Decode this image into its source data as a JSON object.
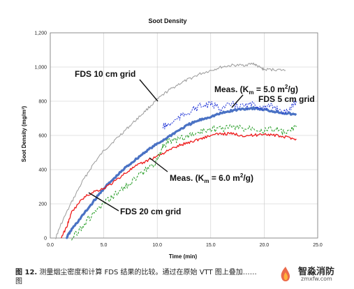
{
  "chart_data": {
    "type": "line",
    "title": "Soot Density",
    "xlabel": "Time (min)",
    "ylabel": "Soot Density (mg/m³)",
    "xlim": [
      0,
      25
    ],
    "ylim": [
      0,
      1200
    ],
    "xticks": [
      "0.0",
      "5.0",
      "10.0",
      "15.0",
      "20.0",
      "25.0"
    ],
    "yticks": [
      "0",
      "200",
      "400",
      "600",
      "800",
      "1,000",
      "1,200"
    ],
    "grid": true,
    "series": [
      {
        "name": "FDS 10 cm grid",
        "color": "#9a9a9a",
        "x": [
          0.5,
          1.0,
          2.0,
          3.0,
          4.0,
          5.0,
          6.0,
          7.0,
          8.0,
          9.0,
          10.0,
          11.0,
          12.0,
          13.0,
          14.0,
          15.0,
          16.0,
          17.0,
          18.0,
          19.0,
          19.5,
          20.0,
          21.0,
          22.0
        ],
        "y": [
          0,
          80,
          210,
          330,
          430,
          510,
          570,
          630,
          690,
          750,
          810,
          860,
          900,
          930,
          960,
          980,
          1000,
          1010,
          1010,
          1020,
          1000,
          985,
          985,
          980
        ]
      },
      {
        "name": "FDS 5 cm grid",
        "color": "#4a72c4",
        "x": [
          1.5,
          2.0,
          3.0,
          4.0,
          5.0,
          6.0,
          7.0,
          8.0,
          9.0,
          10.0,
          11.0,
          12.0,
          13.0,
          14.0,
          15.0,
          16.0,
          17.0,
          18.0,
          19.0,
          20.0,
          21.0,
          22.0,
          23.0
        ],
        "y": [
          0,
          50,
          130,
          210,
          290,
          350,
          410,
          460,
          510,
          550,
          590,
          630,
          665,
          690,
          710,
          730,
          745,
          755,
          760,
          750,
          740,
          730,
          720
        ]
      },
      {
        "name": "FDS 20 cm grid",
        "color": "#ee1c1c",
        "x": [
          1.0,
          1.5,
          2.0,
          3.0,
          4.0,
          5.0,
          6.0,
          7.0,
          8.0,
          9.0,
          10.0,
          11.0,
          12.0,
          13.0,
          14.0,
          15.0,
          16.0,
          17.0,
          18.0,
          19.0,
          20.0,
          21.0,
          22.0,
          23.0
        ],
        "y": [
          0,
          60,
          150,
          230,
          270,
          290,
          330,
          380,
          420,
          450,
          480,
          510,
          540,
          560,
          580,
          600,
          610,
          610,
          600,
          600,
          610,
          600,
          590,
          580
        ]
      },
      {
        "name": "Meas. (Km = 5.0 m²/g)",
        "color": "#1a2fd6",
        "x": [
          10.5,
          11.0,
          12.0,
          13.0,
          14.0,
          15.0,
          16.0,
          17.0,
          18.0,
          19.0,
          20.0,
          21.0,
          22.0,
          23.0
        ],
        "y": [
          650,
          660,
          700,
          740,
          770,
          780,
          760,
          780,
          770,
          780,
          760,
          770,
          730,
          800
        ]
      },
      {
        "name": "Meas. (Km = 6.0 m²/g)",
        "color": "#1f9a1f",
        "x": [
          2.0,
          3.0,
          4.0,
          5.0,
          6.0,
          7.0,
          8.0,
          9.0,
          10.0,
          10.5,
          11.0,
          12.0,
          13.0,
          14.0,
          15.0,
          16.0,
          17.0,
          18.0,
          19.0,
          20.0,
          21.0,
          22.0,
          23.0
        ],
        "y": [
          0,
          70,
          140,
          200,
          250,
          300,
          350,
          400,
          450,
          540,
          560,
          580,
          600,
          620,
          640,
          640,
          650,
          640,
          650,
          630,
          640,
          610,
          650
        ]
      }
    ],
    "annotations": {
      "fds10": "FDS 10 cm grid",
      "fds5": "FDS 5 cm grid",
      "fds20": "FDS 20 cm grid",
      "meas5_prefix": "Meas. (K",
      "meas5_sub": "m",
      "meas5_suffix": " = 5.0 m",
      "meas5_sup": "2",
      "meas5_end": "/g)",
      "meas6_prefix": "Meas. (K",
      "meas6_sub": "m",
      "meas6_suffix": " = 6.0 m",
      "meas6_sup": "2",
      "meas6_end": "/g)"
    }
  },
  "caption": {
    "prefix": "图 12.",
    "text": " 测量烟尘密度和计算 FDS 结果的比较。通过在原始 VTT 图上叠加……",
    "line2": "图"
  },
  "watermark": {
    "main": "智淼消防",
    "sub": "zmxfw.com"
  }
}
